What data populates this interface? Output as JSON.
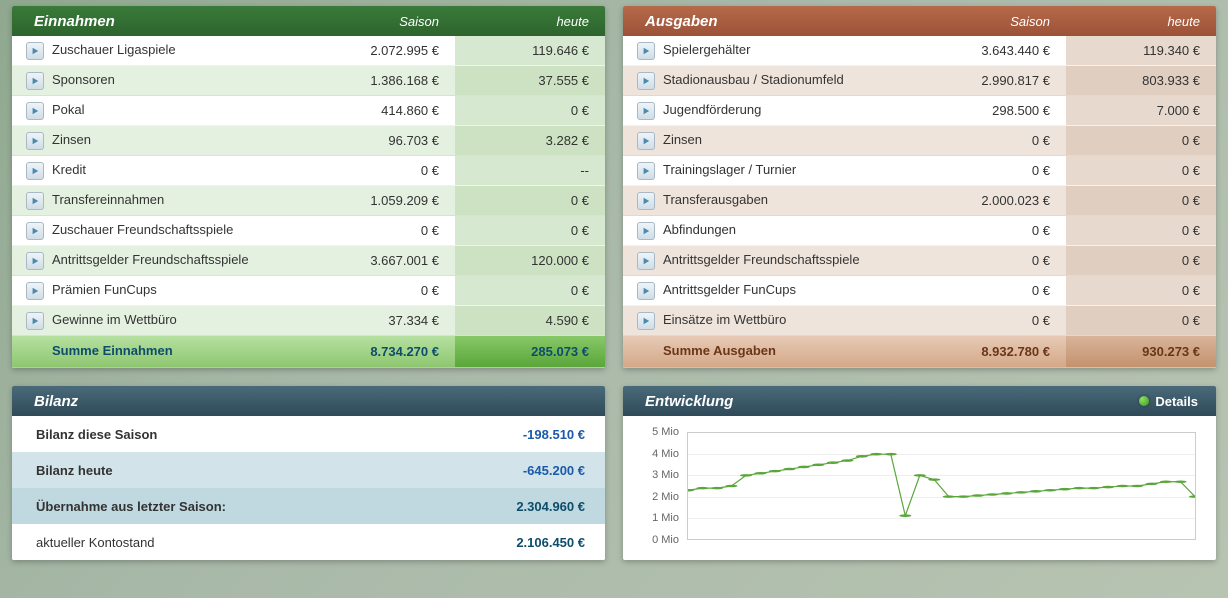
{
  "income": {
    "title": "Einnahmen",
    "col_season": "Saison",
    "col_today": "heute",
    "header_bg": "green",
    "rows": [
      {
        "label": "Zuschauer Ligaspiele",
        "season": "2.072.995 €",
        "today": "119.646 €"
      },
      {
        "label": "Sponsoren",
        "season": "1.386.168 €",
        "today": "37.555 €"
      },
      {
        "label": "Pokal",
        "season": "414.860 €",
        "today": "0 €"
      },
      {
        "label": "Zinsen",
        "season": "96.703 €",
        "today": "3.282 €"
      },
      {
        "label": "Kredit",
        "season": "0 €",
        "today": "--"
      },
      {
        "label": "Transfereinnahmen",
        "season": "1.059.209 €",
        "today": "0 €"
      },
      {
        "label": "Zuschauer Freundschaftsspiele",
        "season": "0 €",
        "today": "0 €"
      },
      {
        "label": "Antrittsgelder Freundschaftsspiele",
        "season": "3.667.001 €",
        "today": "120.000 €"
      },
      {
        "label": "Prämien FunCups",
        "season": "0 €",
        "today": "0 €"
      },
      {
        "label": "Gewinne im Wettbüro",
        "season": "37.334 €",
        "today": "4.590 €"
      }
    ],
    "sum_label": "Summe Einnahmen",
    "sum_season": "8.734.270 €",
    "sum_today": "285.073 €"
  },
  "expenses": {
    "title": "Ausgaben",
    "col_season": "Saison",
    "col_today": "heute",
    "header_bg": "brown",
    "rows": [
      {
        "label": "Spielergehälter",
        "season": "3.643.440 €",
        "today": "119.340 €"
      },
      {
        "label": "Stadionausbau / Stadionumfeld",
        "season": "2.990.817 €",
        "today": "803.933 €"
      },
      {
        "label": "Jugendförderung",
        "season": "298.500 €",
        "today": "7.000 €"
      },
      {
        "label": "Zinsen",
        "season": "0 €",
        "today": "0 €"
      },
      {
        "label": "Trainingslager / Turnier",
        "season": "0 €",
        "today": "0 €"
      },
      {
        "label": "Transferausgaben",
        "season": "2.000.023 €",
        "today": "0 €"
      },
      {
        "label": "Abfindungen",
        "season": "0 €",
        "today": "0 €"
      },
      {
        "label": "Antrittsgelder Freundschaftsspiele",
        "season": "0 €",
        "today": "0 €"
      },
      {
        "label": "Antrittsgelder FunCups",
        "season": "0 €",
        "today": "0 €"
      },
      {
        "label": "Einsätze im Wettbüro",
        "season": "0 €",
        "today": "0 €"
      }
    ],
    "sum_label": "Summe Ausgaben",
    "sum_season": "8.932.780 €",
    "sum_today": "930.273 €"
  },
  "balance": {
    "title": "Bilanz",
    "rows": [
      {
        "label": "Bilanz diese Saison",
        "value": "-198.510 €",
        "neg": true
      },
      {
        "label": "Bilanz heute",
        "value": "-645.200 €",
        "neg": true
      },
      {
        "label": "Übernahme aus letzter Saison:",
        "value": "2.304.960 €",
        "neg": false
      },
      {
        "label": "aktueller Kontostand",
        "value": "2.106.450 €",
        "neg": false
      }
    ]
  },
  "chart": {
    "title": "Entwicklung",
    "details_label": "Details",
    "ymax_mio": 5,
    "ymin_mio": 0,
    "ytick_step": 1,
    "ylabels": [
      "5 Mio",
      "4 Mio",
      "3 Mio",
      "2 Mio",
      "1 Mio",
      "0 Mio"
    ],
    "line_color": "#5aa63a",
    "marker_color": "#5aa63a",
    "grid_color": "#eeeeee",
    "background": "#ffffff",
    "values_mio": [
      2.3,
      2.4,
      2.4,
      2.5,
      3.0,
      3.1,
      3.2,
      3.3,
      3.4,
      3.5,
      3.6,
      3.7,
      3.9,
      4.0,
      4.0,
      1.1,
      3.0,
      2.8,
      2.0,
      2.0,
      2.05,
      2.1,
      2.15,
      2.2,
      2.25,
      2.3,
      2.35,
      2.4,
      2.4,
      2.45,
      2.5,
      2.5,
      2.6,
      2.7,
      2.7,
      2.0
    ]
  }
}
